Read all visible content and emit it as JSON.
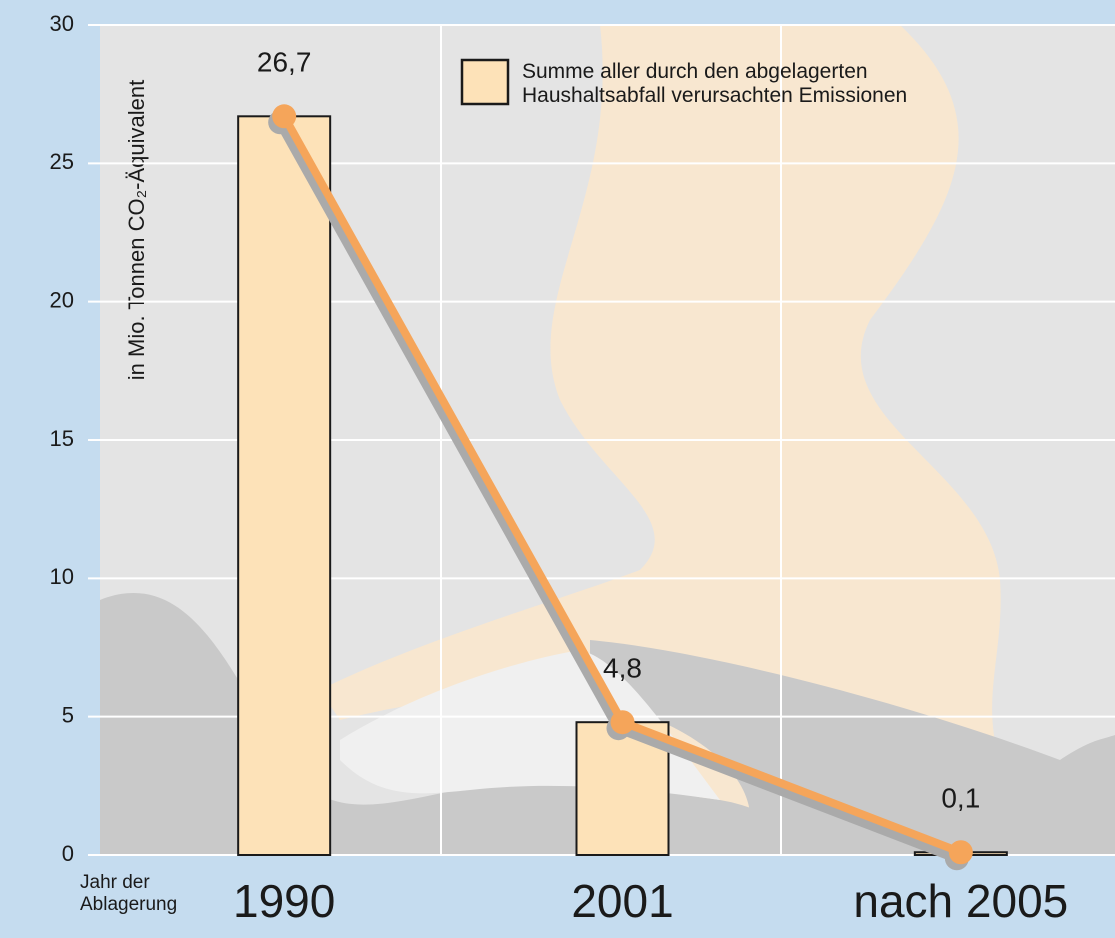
{
  "chart_data": {
    "type": "bar",
    "y_label": "in Mio. Tonnen CO₂-Äquivalent",
    "x_label": "Jahr der Ablagerung",
    "categories": [
      "1990",
      "2001",
      "nach 2005"
    ],
    "series": [
      {
        "name": "Summe aller durch den abgelagerten Haushaltsabfall verursachten Emissionen",
        "color": "#fde2b8",
        "line_color": "#f5a55a",
        "values": [
          26.7,
          4.8,
          0.1
        ],
        "value_labels": [
          "26,7",
          "4,8",
          "0,1"
        ]
      }
    ],
    "ylim": [
      0,
      30
    ],
    "yticks": [
      0,
      5,
      10,
      15,
      20,
      25,
      30
    ],
    "grid": true,
    "line_overlay": true
  }
}
